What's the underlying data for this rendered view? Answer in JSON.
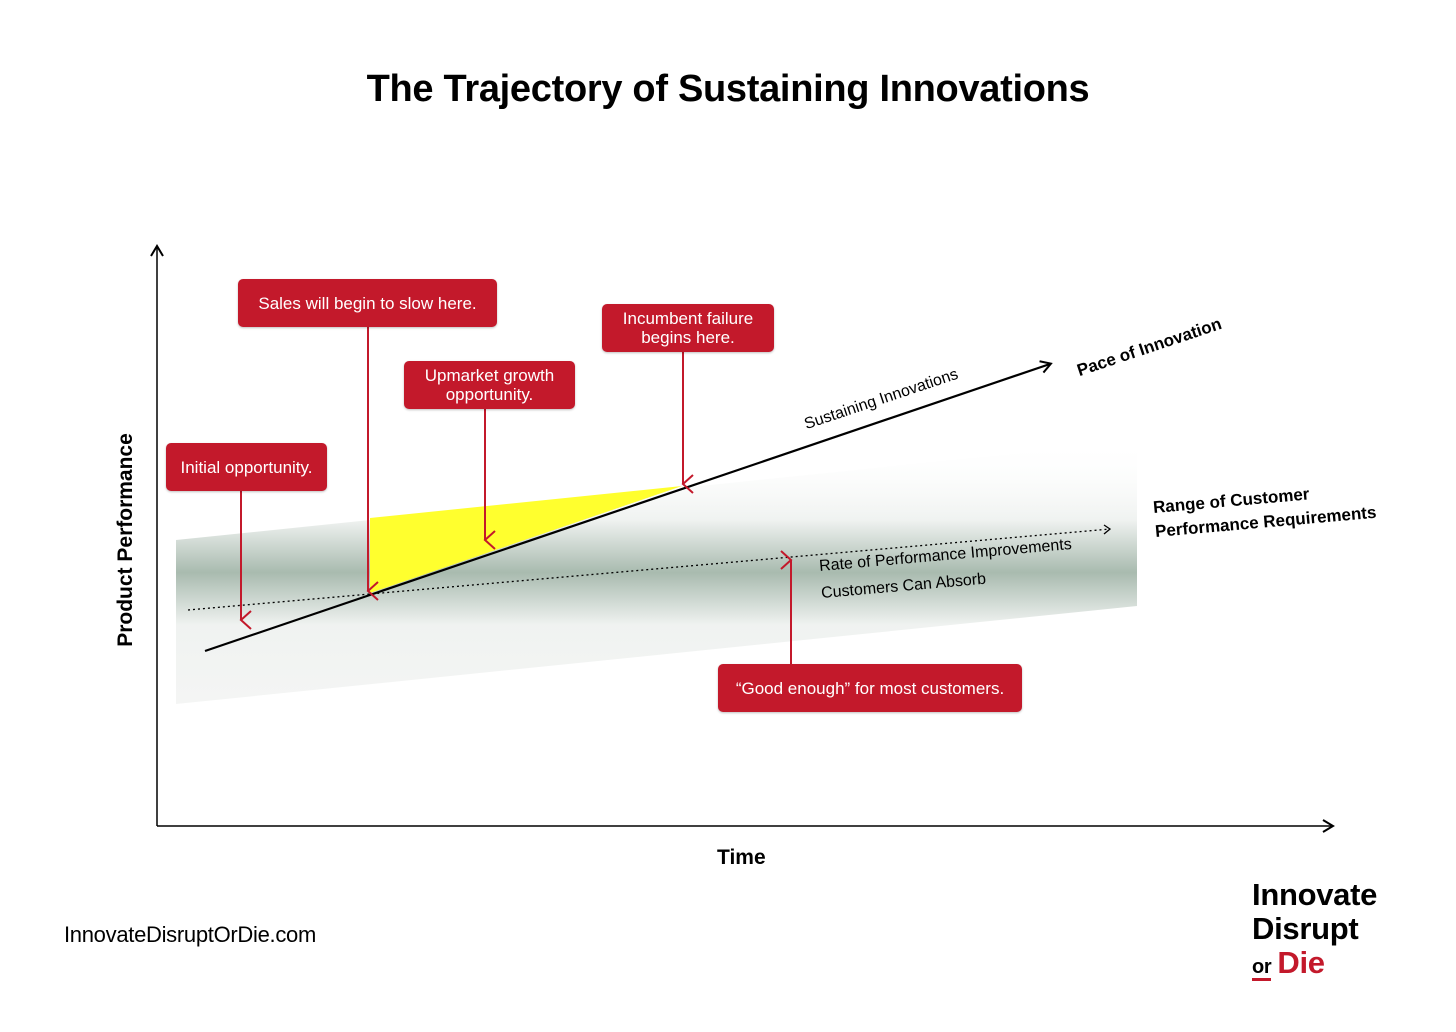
{
  "title": "The Trajectory of Sustaining Innovations",
  "axes": {
    "x_label": "Time",
    "y_label": "Product Performance"
  },
  "lines": {
    "sustaining_label": "Sustaining Innovations",
    "pace_label": "Pace of Innovation",
    "absorb_line1": "Rate of Performance Improvements",
    "absorb_line2": "Customers Can Absorb",
    "range_line1": "Range of Customer",
    "range_line2": "Performance Requirements"
  },
  "callouts": {
    "initial": "Initial opportunity.",
    "sales": "Sales will begin to slow here.",
    "upmarket": "Upmarket growth\nopportunity.",
    "incumbent": "Incumbent failure\nbegins here.",
    "good_enough": "“Good enough” for most customers."
  },
  "footer": {
    "url": "InnovateDisruptOrDie.com",
    "brand_line1": "Innovate",
    "brand_line2": "Disrupt",
    "brand_or": "or",
    "brand_die": "Die"
  },
  "colors": {
    "accent": "#c3192b",
    "highlight": "#ffff2e",
    "band": "#5f7a69"
  }
}
